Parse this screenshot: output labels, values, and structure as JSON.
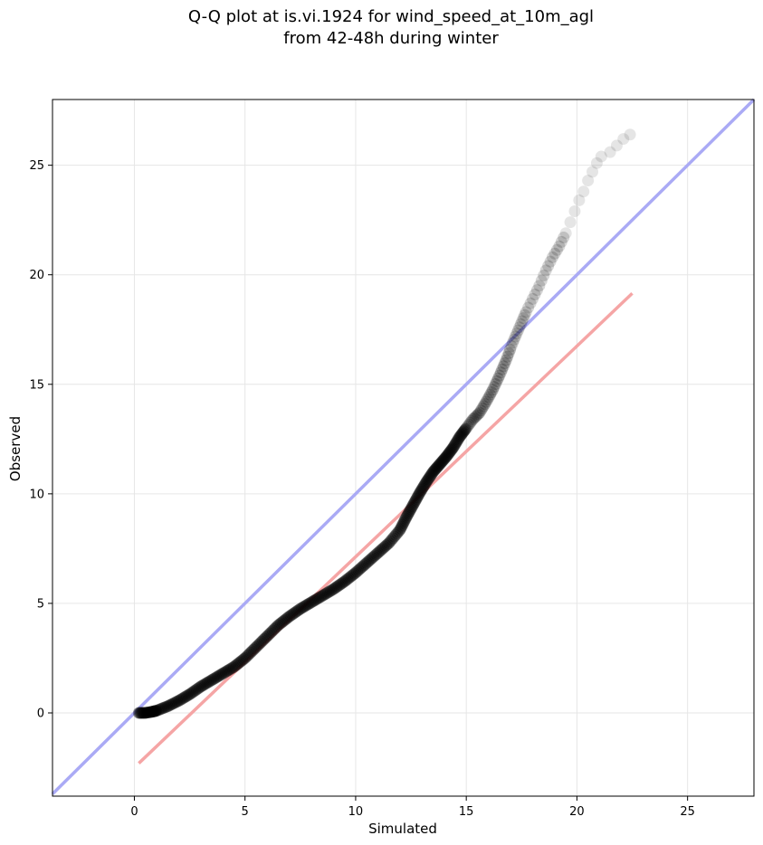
{
  "chart_data": {
    "type": "scatter",
    "title_lines": [
      "Q-Q plot at is.vi.1924 for wind_speed_at_10m_agl",
      "from 42-48h during winter"
    ],
    "xlabel": "Simulated",
    "ylabel": "Observed",
    "xlim": [
      -3.7,
      28.0
    ],
    "ylim": [
      -3.8,
      28.0
    ],
    "xticks": [
      0,
      5,
      10,
      15,
      20,
      25
    ],
    "yticks": [
      0,
      5,
      10,
      15,
      20,
      25
    ],
    "tick_labels_x": [
      "0",
      "5",
      "10",
      "15",
      "20",
      "25"
    ],
    "tick_labels_y": [
      "0",
      "5",
      "10",
      "15",
      "20",
      "25"
    ],
    "grid": true,
    "reference_line": {
      "x": [
        -3.7,
        28.0
      ],
      "y": [
        -3.7,
        28.0
      ],
      "color": "#aaaaf5"
    },
    "fit_line": {
      "x": [
        0.2,
        22.5
      ],
      "y": [
        -2.3,
        19.15
      ],
      "color": "#f5a5a5"
    },
    "quantile_points": {
      "x": [
        0.2,
        0.5,
        0.8,
        1.0,
        1.5,
        2.0,
        2.5,
        3.0,
        3.5,
        4.0,
        4.5,
        5.0,
        5.5,
        6.0,
        6.5,
        7.0,
        7.5,
        8.0,
        8.5,
        9.0,
        9.5,
        10.0,
        10.5,
        11.0,
        11.5,
        12.0,
        12.3,
        12.6,
        12.9,
        13.2,
        13.5,
        13.8,
        14.1,
        14.4,
        14.7,
        15.0,
        15.3,
        15.6,
        15.9,
        16.2,
        16.5,
        16.8,
        17.1,
        17.4,
        17.7,
        18.0,
        18.3,
        18.6,
        18.9,
        19.2,
        19.5,
        19.7,
        19.9,
        20.1,
        20.3,
        20.5,
        20.7,
        20.9,
        21.1,
        21.5,
        21.8,
        22.1,
        22.4
      ],
      "y": [
        0.0,
        0.0,
        0.05,
        0.1,
        0.3,
        0.55,
        0.85,
        1.2,
        1.5,
        1.8,
        2.1,
        2.5,
        3.0,
        3.5,
        4.0,
        4.4,
        4.75,
        5.05,
        5.35,
        5.65,
        6.0,
        6.4,
        6.85,
        7.3,
        7.75,
        8.35,
        8.95,
        9.5,
        10.05,
        10.55,
        11.0,
        11.35,
        11.7,
        12.1,
        12.6,
        13.0,
        13.4,
        13.7,
        14.2,
        14.75,
        15.4,
        16.1,
        16.9,
        17.6,
        18.3,
        18.9,
        19.5,
        20.2,
        20.8,
        21.3,
        21.9,
        22.4,
        22.9,
        23.4,
        23.8,
        24.3,
        24.7,
        25.1,
        25.4,
        25.6,
        25.9,
        26.2,
        26.4
      ],
      "color": "#000000"
    }
  }
}
